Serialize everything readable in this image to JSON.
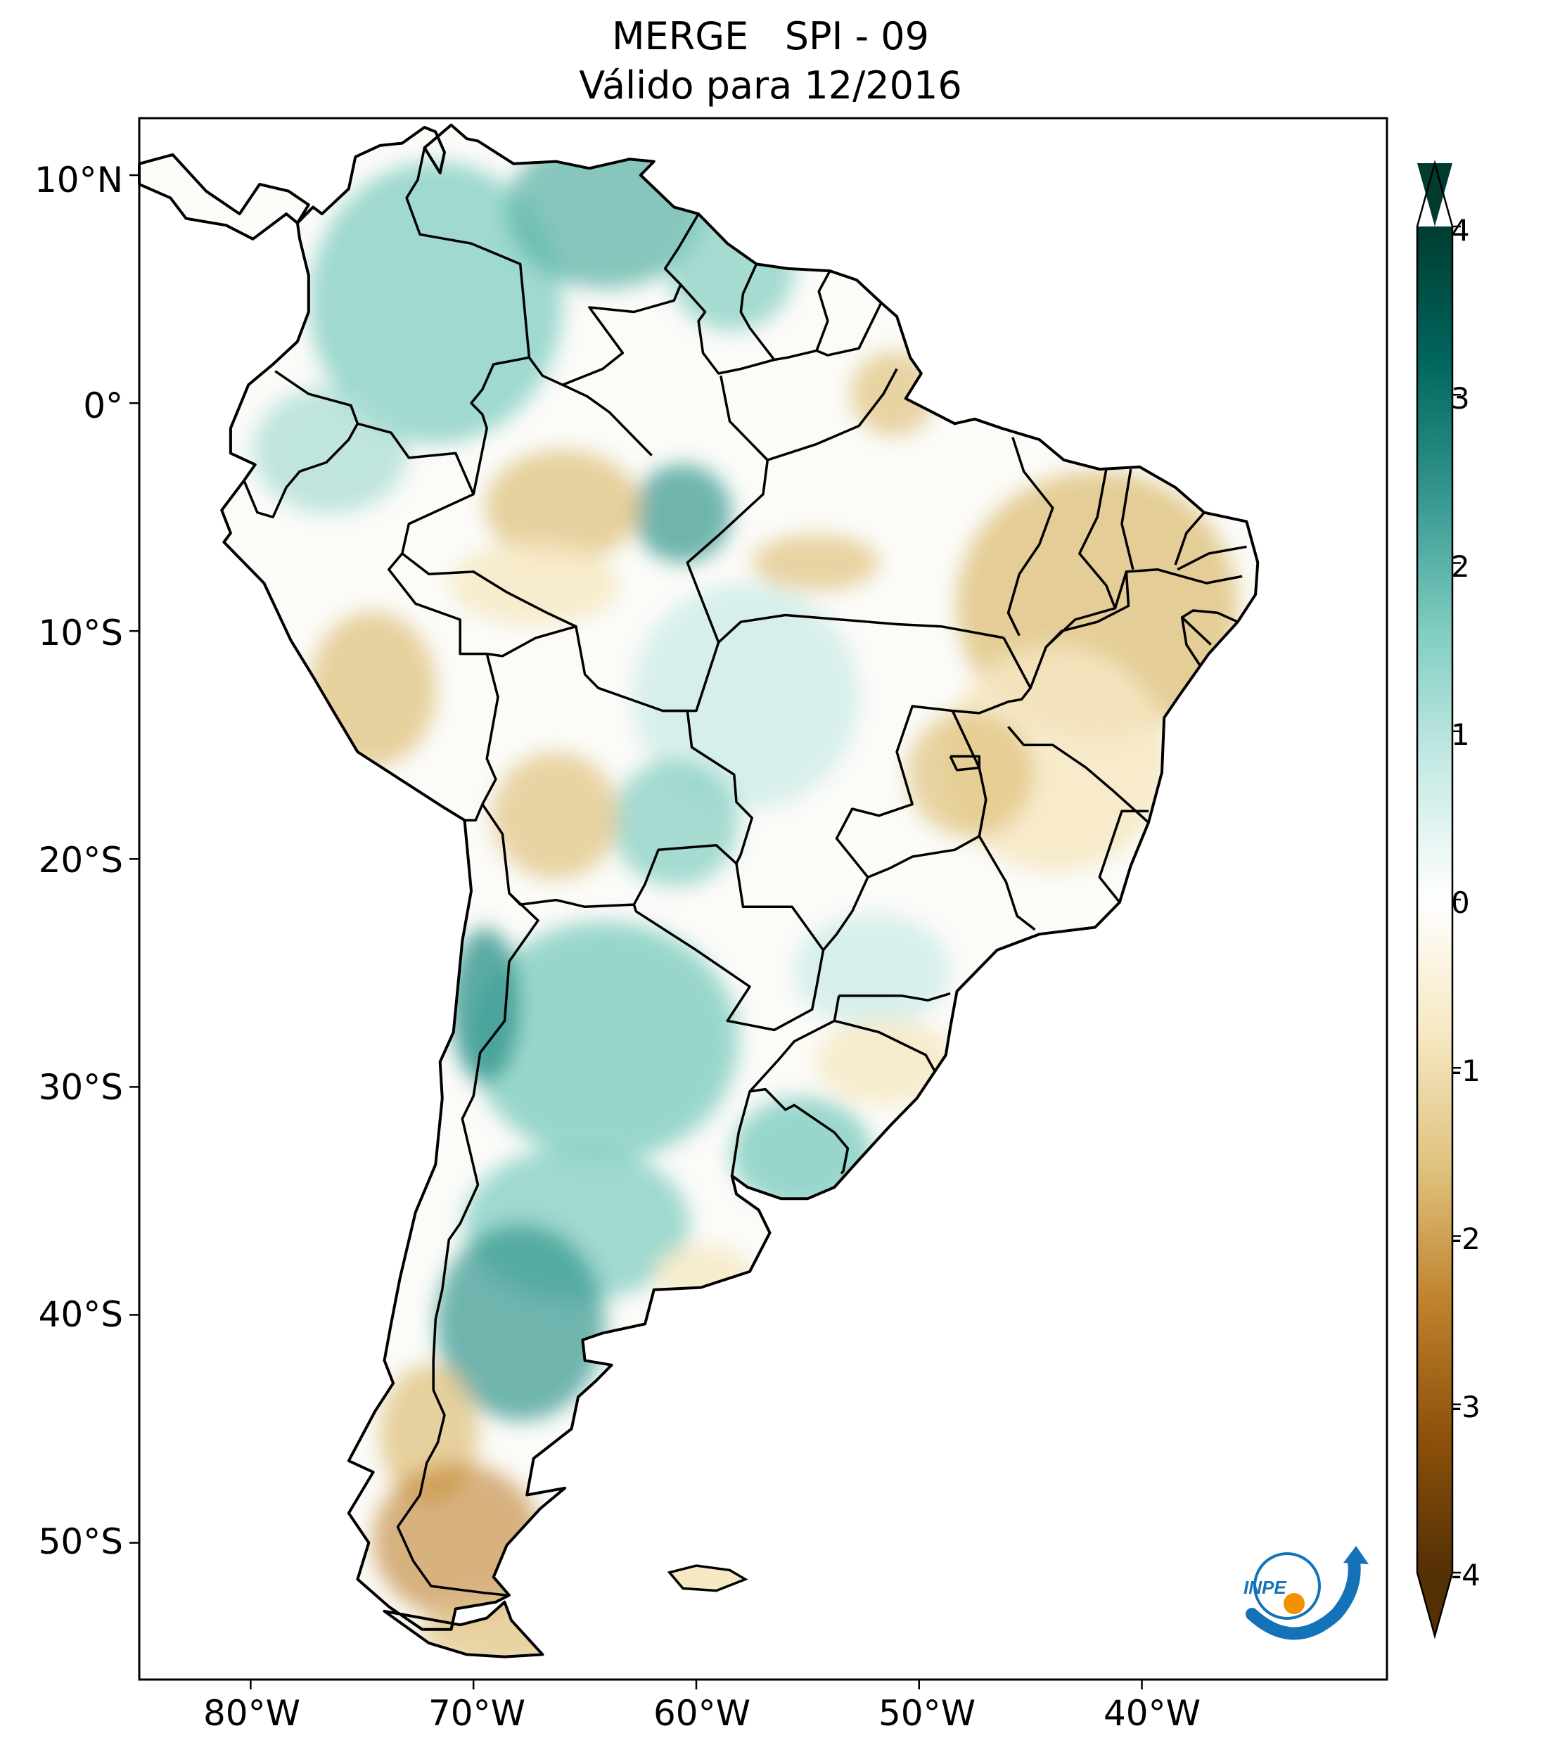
{
  "title": {
    "line1": "MERGE   SPI - 09",
    "line2": "Válido para 12/2016"
  },
  "map": {
    "region": "South America",
    "projection": "PlateCarree",
    "lon_range": [
      -85,
      -29
    ],
    "lat_range": [
      -56,
      12.5
    ],
    "lat_ticks": [
      {
        "value": 10,
        "label": "10°N"
      },
      {
        "value": 0,
        "label": "0°"
      },
      {
        "value": -10,
        "label": "10°S"
      },
      {
        "value": -20,
        "label": "20°S"
      },
      {
        "value": -30,
        "label": "30°S"
      },
      {
        "value": -40,
        "label": "40°S"
      },
      {
        "value": -50,
        "label": "50°S"
      }
    ],
    "lon_ticks": [
      {
        "value": -80,
        "label": "80°W"
      },
      {
        "value": -70,
        "label": "70°W"
      },
      {
        "value": -60,
        "label": "60°W"
      },
      {
        "value": -50,
        "label": "50°W"
      },
      {
        "value": -40,
        "label": "40°W"
      }
    ]
  },
  "colorbar": {
    "colormap": "BrBG",
    "min": -4,
    "max": 4,
    "extend": "both",
    "ticks": [
      {
        "value": 4,
        "label": "4"
      },
      {
        "value": 3,
        "label": "3"
      },
      {
        "value": 2,
        "label": "2"
      },
      {
        "value": 1,
        "label": "1"
      },
      {
        "value": 0,
        "label": "0"
      },
      {
        "value": -1,
        "label": "-1"
      },
      {
        "value": -2,
        "label": "-2"
      },
      {
        "value": -3,
        "label": "-3"
      },
      {
        "value": -4,
        "label": "-4"
      }
    ],
    "colors": [
      "#543005",
      "#8c510a",
      "#bf812d",
      "#dfc27d",
      "#f6e8c3",
      "#ffffff",
      "#c7eae5",
      "#80cdc1",
      "#35978f",
      "#01665e",
      "#003c30"
    ]
  },
  "logo": {
    "text": "INPE",
    "colors": [
      "#1473b8",
      "#f39200"
    ]
  },
  "regions": [
    {
      "name": "Northern Andes (Colombia/Venezuela)",
      "anomaly": "wet",
      "level": 2.0
    },
    {
      "name": "Central Amazon",
      "anomaly": "mixed",
      "level": -0.8
    },
    {
      "name": "Northeast Brazil",
      "anomaly": "dry",
      "level": -1.3
    },
    {
      "name": "Central Argentina",
      "anomaly": "wet",
      "level": 1.8
    },
    {
      "name": "Uruguay",
      "anomaly": "wet",
      "level": 1.5
    },
    {
      "name": "Southern Patagonia",
      "anomaly": "dry",
      "level": -1.6
    }
  ]
}
